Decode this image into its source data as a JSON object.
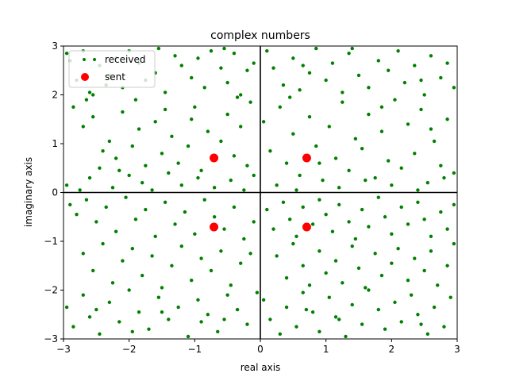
{
  "chart_data": {
    "type": "scatter",
    "title": "complex numbers",
    "xlabel": "real axis",
    "ylabel": "imaginary axis",
    "xlim": [
      -3,
      3
    ],
    "ylim": [
      -3,
      3
    ],
    "xticks": [
      -3,
      -2,
      -1,
      0,
      1,
      2,
      3
    ],
    "yticks": [
      -3,
      -2,
      -1,
      0,
      1,
      2,
      3
    ],
    "grid": false,
    "legend_position": "top-left",
    "axes_lines_at_zero": true,
    "series": [
      {
        "name": "received",
        "color": "#008000",
        "marker": "small-dot",
        "approx_count": 400,
        "points": [
          [
            -2.95,
            2.85
          ],
          [
            -2.9,
            2.7
          ],
          [
            -2.8,
            2.3
          ],
          [
            -2.7,
            2.9
          ],
          [
            -2.6,
            2.05
          ],
          [
            -2.55,
            2.0
          ],
          [
            -2.45,
            2.6
          ],
          [
            -2.3,
            2.4
          ],
          [
            -2.2,
            2.75
          ],
          [
            -2.1,
            2.15
          ],
          [
            -2.0,
            2.9
          ],
          [
            -1.85,
            2.65
          ],
          [
            -1.75,
            2.3
          ],
          [
            -1.6,
            2.45
          ],
          [
            -1.45,
            2.05
          ],
          [
            -1.3,
            2.8
          ],
          [
            -1.2,
            2.6
          ],
          [
            -1.05,
            2.35
          ],
          [
            -0.95,
            2.75
          ],
          [
            -0.85,
            2.15
          ],
          [
            -0.75,
            2.9
          ],
          [
            -0.6,
            2.55
          ],
          [
            -0.5,
            2.25
          ],
          [
            -0.4,
            2.85
          ],
          [
            -0.3,
            2.0
          ],
          [
            -0.2,
            2.5
          ],
          [
            -0.1,
            2.65
          ],
          [
            -0.55,
            2.95
          ],
          [
            -1.55,
            2.95
          ],
          [
            -2.35,
            2.2
          ],
          [
            -2.85,
            1.75
          ],
          [
            -2.7,
            1.35
          ],
          [
            -2.55,
            1.55
          ],
          [
            -2.4,
            0.85
          ],
          [
            -2.3,
            1.05
          ],
          [
            -2.2,
            0.7
          ],
          [
            -2.1,
            1.65
          ],
          [
            -1.95,
            0.95
          ],
          [
            -1.85,
            1.3
          ],
          [
            -1.75,
            0.55
          ],
          [
            -1.6,
            1.45
          ],
          [
            -1.5,
            0.8
          ],
          [
            -1.35,
            1.15
          ],
          [
            -1.25,
            0.6
          ],
          [
            -1.1,
            0.95
          ],
          [
            -1.0,
            1.75
          ],
          [
            -0.9,
            0.45
          ],
          [
            -0.8,
            1.25
          ],
          [
            -0.6,
            1.05
          ],
          [
            -0.5,
            1.6
          ],
          [
            -0.4,
            0.75
          ],
          [
            -0.3,
            1.35
          ],
          [
            -0.2,
            0.55
          ],
          [
            -0.15,
            1.85
          ],
          [
            -2.95,
            0.15
          ],
          [
            -2.75,
            0.05
          ],
          [
            -2.6,
            0.3
          ],
          [
            -2.45,
            0.5
          ],
          [
            -2.25,
            0.1
          ],
          [
            -2.0,
            0.35
          ],
          [
            -1.8,
            0.2
          ],
          [
            -1.65,
            0.05
          ],
          [
            -1.4,
            0.4
          ],
          [
            -1.2,
            0.15
          ],
          [
            -0.95,
            0.3
          ],
          [
            -0.7,
            0.1
          ],
          [
            -0.45,
            0.25
          ],
          [
            -0.25,
            0.05
          ],
          [
            -0.1,
            0.35
          ],
          [
            -1.9,
            1.9
          ],
          [
            -2.65,
            1.9
          ],
          [
            -1.05,
            1.5
          ],
          [
            -0.35,
            1.95
          ],
          [
            -2.15,
            0.45
          ],
          [
            -1.45,
            1.7
          ],
          [
            -2.9,
            -0.25
          ],
          [
            -2.8,
            -0.45
          ],
          [
            -2.65,
            -0.15
          ],
          [
            -2.5,
            -0.6
          ],
          [
            -2.35,
            -0.3
          ],
          [
            -2.2,
            -0.8
          ],
          [
            -2.05,
            -0.1
          ],
          [
            -1.9,
            -0.55
          ],
          [
            -1.75,
            -0.35
          ],
          [
            -1.6,
            -0.9
          ],
          [
            -1.45,
            -0.2
          ],
          [
            -1.3,
            -0.65
          ],
          [
            -1.15,
            -0.4
          ],
          [
            -1.0,
            -0.85
          ],
          [
            -0.85,
            -0.15
          ],
          [
            -0.7,
            -0.5
          ],
          [
            -0.55,
            -0.75
          ],
          [
            -0.4,
            -0.3
          ],
          [
            -0.25,
            -0.95
          ],
          [
            -0.1,
            -0.6
          ],
          [
            -2.7,
            -1.25
          ],
          [
            -2.55,
            -1.6
          ],
          [
            -2.4,
            -1.05
          ],
          [
            -2.25,
            -1.85
          ],
          [
            -2.1,
            -1.4
          ],
          [
            -1.95,
            -1.15
          ],
          [
            -1.8,
            -1.7
          ],
          [
            -1.65,
            -1.3
          ],
          [
            -1.5,
            -1.95
          ],
          [
            -1.35,
            -1.5
          ],
          [
            -1.2,
            -1.1
          ],
          [
            -1.05,
            -1.8
          ],
          [
            -0.9,
            -1.35
          ],
          [
            -0.75,
            -1.6
          ],
          [
            -0.6,
            -1.2
          ],
          [
            -0.45,
            -1.9
          ],
          [
            -0.3,
            -1.45
          ],
          [
            -0.15,
            -1.25
          ],
          [
            -2.95,
            -2.35
          ],
          [
            -2.85,
            -2.75
          ],
          [
            -2.7,
            -2.1
          ],
          [
            -2.6,
            -2.55
          ],
          [
            -2.45,
            -2.9
          ],
          [
            -2.3,
            -2.25
          ],
          [
            -2.15,
            -2.65
          ],
          [
            -2.0,
            -2.0
          ],
          [
            -1.85,
            -2.45
          ],
          [
            -1.7,
            -2.8
          ],
          [
            -1.55,
            -2.15
          ],
          [
            -1.4,
            -2.6
          ],
          [
            -1.25,
            -2.35
          ],
          [
            -1.1,
            -2.95
          ],
          [
            -0.95,
            -2.2
          ],
          [
            -0.8,
            -2.5
          ],
          [
            -0.65,
            -2.85
          ],
          [
            -0.5,
            -2.1
          ],
          [
            -0.35,
            -2.4
          ],
          [
            -0.2,
            -2.7
          ],
          [
            -0.05,
            -2.05
          ],
          [
            -2.5,
            -2.4
          ],
          [
            -1.95,
            -2.85
          ],
          [
            -1.5,
            -2.45
          ],
          [
            -0.9,
            -2.65
          ],
          [
            -0.55,
            -2.6
          ],
          [
            0.1,
            2.9
          ],
          [
            0.2,
            2.55
          ],
          [
            0.35,
            2.2
          ],
          [
            0.5,
            2.75
          ],
          [
            0.6,
            2.1
          ],
          [
            0.75,
            2.45
          ],
          [
            0.85,
            2.95
          ],
          [
            1.0,
            2.3
          ],
          [
            1.1,
            2.65
          ],
          [
            1.25,
            2.05
          ],
          [
            1.35,
            2.85
          ],
          [
            1.5,
            2.4
          ],
          [
            1.65,
            2.15
          ],
          [
            1.8,
            2.7
          ],
          [
            1.95,
            2.5
          ],
          [
            2.1,
            2.9
          ],
          [
            2.2,
            2.25
          ],
          [
            2.35,
            2.6
          ],
          [
            2.5,
            2.0
          ],
          [
            2.6,
            2.8
          ],
          [
            2.75,
            2.35
          ],
          [
            2.85,
            2.65
          ],
          [
            2.95,
            2.15
          ],
          [
            1.4,
            2.95
          ],
          [
            0.65,
            2.6
          ],
          [
            2.45,
            2.3
          ],
          [
            0.05,
            1.45
          ],
          [
            0.15,
            0.85
          ],
          [
            0.3,
            1.75
          ],
          [
            0.4,
            0.6
          ],
          [
            0.5,
            1.2
          ],
          [
            0.6,
            0.35
          ],
          [
            0.75,
            1.55
          ],
          [
            0.85,
            0.95
          ],
          [
            0.95,
            0.25
          ],
          [
            1.05,
            1.35
          ],
          [
            1.15,
            0.7
          ],
          [
            1.25,
            1.85
          ],
          [
            1.35,
            0.45
          ],
          [
            1.45,
            1.1
          ],
          [
            1.55,
            0.9
          ],
          [
            1.65,
            1.6
          ],
          [
            1.75,
            0.3
          ],
          [
            1.85,
            1.25
          ],
          [
            1.95,
            0.65
          ],
          [
            2.05,
            1.9
          ],
          [
            2.15,
            0.5
          ],
          [
            2.25,
            1.4
          ],
          [
            2.35,
            0.8
          ],
          [
            2.45,
            1.7
          ],
          [
            2.55,
            0.2
          ],
          [
            2.65,
            1.05
          ],
          [
            2.75,
            0.55
          ],
          [
            2.85,
            1.5
          ],
          [
            2.95,
            0.4
          ],
          [
            0.25,
            0.15
          ],
          [
            0.55,
            0.05
          ],
          [
            0.9,
            0.6
          ],
          [
            1.2,
            0.1
          ],
          [
            1.6,
            0.25
          ],
          [
            2.0,
            0.15
          ],
          [
            2.4,
            0.05
          ],
          [
            2.8,
            0.3
          ],
          [
            0.45,
            1.95
          ],
          [
            1.85,
            1.75
          ],
          [
            2.6,
            1.3
          ],
          [
            0.1,
            -0.35
          ],
          [
            0.2,
            -0.75
          ],
          [
            0.35,
            -0.2
          ],
          [
            0.45,
            -0.55
          ],
          [
            0.55,
            -0.9
          ],
          [
            0.65,
            -0.3
          ],
          [
            0.8,
            -0.65
          ],
          [
            0.9,
            -0.15
          ],
          [
            1.0,
            -0.45
          ],
          [
            1.1,
            -0.8
          ],
          [
            1.2,
            -0.25
          ],
          [
            1.35,
            -0.6
          ],
          [
            1.45,
            -0.95
          ],
          [
            1.55,
            -0.35
          ],
          [
            1.65,
            -0.7
          ],
          [
            1.8,
            -0.1
          ],
          [
            1.9,
            -0.5
          ],
          [
            2.0,
            -0.85
          ],
          [
            2.15,
            -0.3
          ],
          [
            2.25,
            -0.65
          ],
          [
            2.4,
            -0.2
          ],
          [
            2.5,
            -0.55
          ],
          [
            2.6,
            -0.9
          ],
          [
            2.75,
            -0.4
          ],
          [
            2.85,
            -0.75
          ],
          [
            2.95,
            -0.25
          ],
          [
            0.25,
            -1.3
          ],
          [
            0.4,
            -1.75
          ],
          [
            0.5,
            -1.05
          ],
          [
            0.65,
            -1.5
          ],
          [
            0.75,
            -1.9
          ],
          [
            0.9,
            -1.2
          ],
          [
            1.0,
            -1.65
          ],
          [
            1.15,
            -1.4
          ],
          [
            1.25,
            -1.85
          ],
          [
            1.4,
            -1.1
          ],
          [
            1.5,
            -1.55
          ],
          [
            1.6,
            -1.95
          ],
          [
            1.75,
            -1.25
          ],
          [
            1.85,
            -1.7
          ],
          [
            2.0,
            -1.45
          ],
          [
            2.1,
            -1.15
          ],
          [
            2.25,
            -1.8
          ],
          [
            2.35,
            -1.35
          ],
          [
            2.5,
            -1.6
          ],
          [
            2.6,
            -1.2
          ],
          [
            2.7,
            -1.9
          ],
          [
            2.85,
            -1.5
          ],
          [
            2.95,
            -1.05
          ],
          [
            0.05,
            -2.2
          ],
          [
            0.15,
            -2.6
          ],
          [
            0.3,
            -2.9
          ],
          [
            0.4,
            -2.35
          ],
          [
            0.55,
            -2.75
          ],
          [
            0.65,
            -2.05
          ],
          [
            0.8,
            -2.45
          ],
          [
            0.9,
            -2.85
          ],
          [
            1.05,
            -2.15
          ],
          [
            1.15,
            -2.55
          ],
          [
            1.3,
            -2.95
          ],
          [
            1.4,
            -2.3
          ],
          [
            1.55,
            -2.7
          ],
          [
            1.65,
            -2.0
          ],
          [
            1.8,
            -2.4
          ],
          [
            1.9,
            -2.8
          ],
          [
            2.05,
            -2.25
          ],
          [
            2.15,
            -2.65
          ],
          [
            2.3,
            -2.1
          ],
          [
            2.4,
            -2.5
          ],
          [
            2.55,
            -2.9
          ],
          [
            2.65,
            -2.35
          ],
          [
            2.8,
            -2.75
          ],
          [
            2.9,
            -2.15
          ],
          [
            1.2,
            -2.6
          ],
          [
            2.45,
            -2.7
          ],
          [
            0.7,
            -2.4
          ]
        ]
      },
      {
        "name": "sent",
        "color": "#ff0000",
        "marker": "large-dot",
        "points": [
          [
            0.707,
            0.707
          ],
          [
            -0.707,
            0.707
          ],
          [
            -0.707,
            -0.707
          ],
          [
            0.707,
            -0.707
          ]
        ]
      }
    ]
  }
}
